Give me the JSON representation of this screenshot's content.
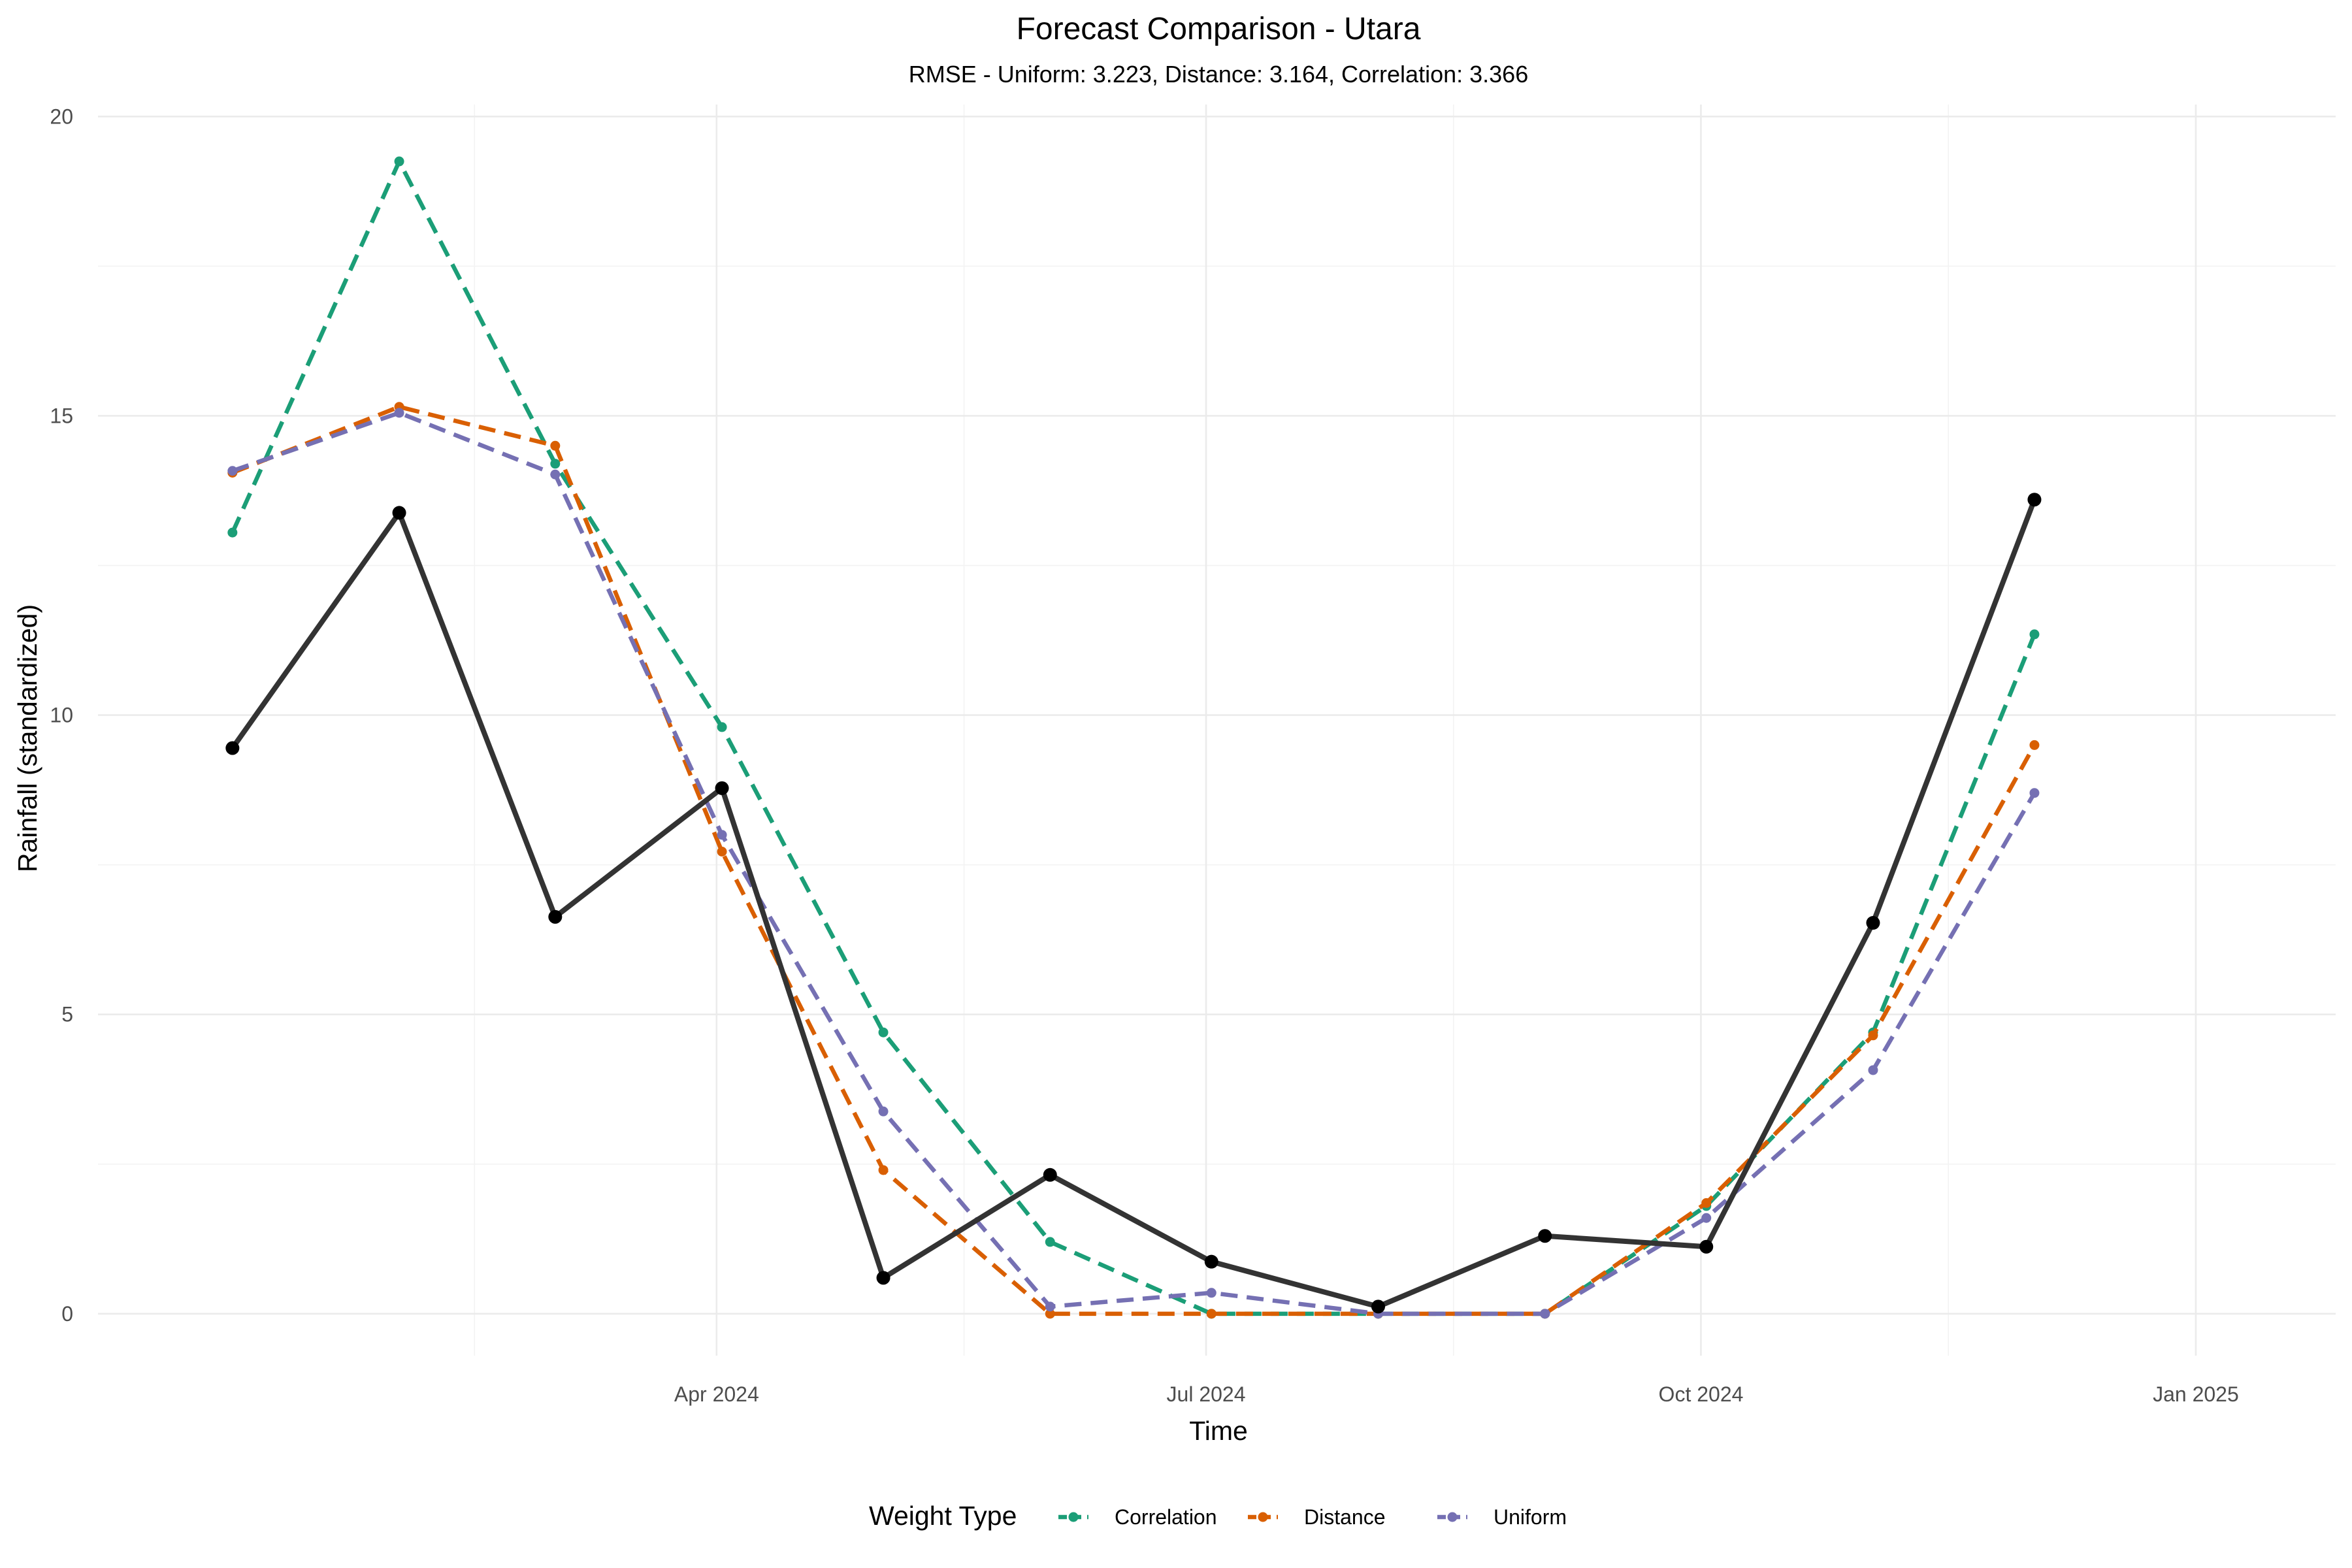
{
  "chart_data": {
    "type": "line",
    "title": "Forecast Comparison - Utara",
    "subtitle": "RMSE - Uniform: 3.223, Distance: 3.164, Correlation: 3.366",
    "xlabel": "Time",
    "ylabel": "Rainfall (standardized)",
    "x": [
      "2024-01-01",
      "2024-02-01",
      "2024-03-01",
      "2024-04-01",
      "2024-05-01",
      "2024-06-01",
      "2024-07-01",
      "2024-08-01",
      "2024-09-01",
      "2024-10-01",
      "2024-11-01",
      "2024-12-01"
    ],
    "xlim": [
      "2023-12-07",
      "2025-01-26"
    ],
    "ylim": [
      -0.7,
      20.2
    ],
    "y_ticks": [
      0,
      5,
      10,
      15,
      20
    ],
    "x_ticks": [
      {
        "date": "2024-03-31",
        "label": "Apr 2024"
      },
      {
        "date": "2024-06-30",
        "label": "Jul 2024"
      },
      {
        "date": "2024-09-30",
        "label": "Oct 2024"
      },
      {
        "date": "2024-12-31",
        "label": "Jan 2025"
      }
    ],
    "x_minor_ticks": [
      "2024-02-15",
      "2024-05-16",
      "2024-08-15",
      "2024-11-15"
    ],
    "observed": {
      "color": "#333333",
      "values": [
        9.45,
        13.38,
        6.63,
        8.78,
        0.6,
        2.32,
        0.87,
        0.12,
        1.3,
        1.12,
        6.53,
        13.6
      ]
    },
    "series": [
      {
        "name": "Correlation",
        "color": "#1B9E77",
        "values": [
          13.05,
          19.25,
          14.2,
          9.8,
          4.7,
          1.2,
          0.0,
          0.0,
          0.0,
          1.8,
          4.7,
          11.35
        ]
      },
      {
        "name": "Distance",
        "color": "#D95F02",
        "values": [
          14.05,
          15.15,
          14.5,
          7.72,
          2.4,
          0.0,
          0.0,
          0.0,
          0.0,
          1.85,
          4.65,
          9.5
        ]
      },
      {
        "name": "Uniform",
        "color": "#7570B3",
        "values": [
          14.08,
          15.05,
          14.02,
          8.0,
          3.38,
          0.12,
          0.35,
          0.0,
          0.0,
          1.6,
          4.07,
          8.7
        ]
      }
    ],
    "grid": true,
    "legend": {
      "title": "Weight Type",
      "position": "bottom"
    }
  }
}
